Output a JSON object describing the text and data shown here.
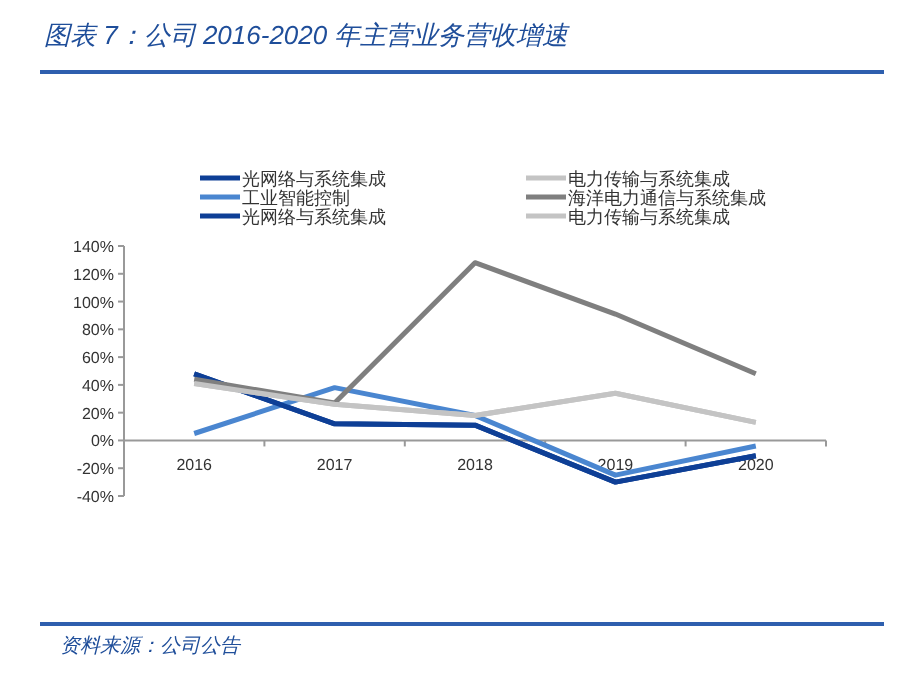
{
  "chart_data": {
    "type": "line",
    "title": "图表 7：公司 2016-2020 年主营业务营收增速",
    "categories": [
      "2016",
      "2017",
      "2018",
      "2019",
      "2020"
    ],
    "series": [
      {
        "name": "光网络与系统集成",
        "color": "#0e3f96",
        "values": [
          48,
          12,
          11,
          -30,
          -11
        ]
      },
      {
        "name": "工业智能控制",
        "color": "#4a86d0",
        "values": [
          5,
          38,
          18,
          -25,
          -4
        ]
      },
      {
        "name": "光网络与系统集成",
        "color": "#0e3f96",
        "values": [
          48,
          12,
          11,
          -30,
          -11
        ]
      },
      {
        "name": "电力传输与系统集成",
        "color": "#c4c4c4",
        "values": [
          41,
          26,
          18,
          34,
          13
        ]
      },
      {
        "name": "海洋电力通信与系统集成",
        "color": "#7f7f7f",
        "values": [
          44,
          27,
          128,
          91,
          48
        ]
      },
      {
        "name": "电力传输与系统集成",
        "color": "#c4c4c4",
        "values": [
          41,
          26,
          18,
          34,
          13
        ]
      }
    ],
    "ylim": [
      -40,
      140
    ],
    "yticks": [
      {
        "value": -40,
        "label": "-40%"
      },
      {
        "value": -20,
        "label": "-20%"
      },
      {
        "value": 0,
        "label": "0%"
      },
      {
        "value": 20,
        "label": "20%"
      },
      {
        "value": 40,
        "label": "40%"
      },
      {
        "value": 60,
        "label": "60%"
      },
      {
        "value": 80,
        "label": "80%"
      },
      {
        "value": 100,
        "label": "100%"
      },
      {
        "value": 120,
        "label": "120%"
      },
      {
        "value": 140,
        "label": "140%"
      }
    ],
    "legend": "top",
    "annotations": [
      "资料来源：公司公告"
    ]
  }
}
